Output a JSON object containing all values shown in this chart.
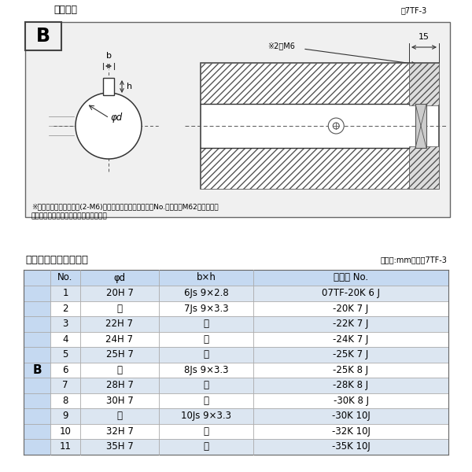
{
  "title_top": "軸穴形状",
  "fig_label_top": "図7TF-3",
  "table_title": "軸穴形状コード一覧表",
  "table_unit": "（単位:mm）　表7TF-3",
  "note1": "※セットボルト用タップ(2-M6)が必要な場合は右記コードNo.の末尾にM62を付ける。",
  "note2": "（セットボルトは付属されています。）",
  "dim_note": "※2－M6",
  "dim_15": "15",
  "label_b": "b",
  "label_h": "h",
  "label_phid": "φd",
  "label_B_draw": "B",
  "header_bg": "#c5d9f1",
  "row_bg_odd": "#dce6f1",
  "row_bg_even": "#ffffff",
  "b_col_bg": "#c5d9f1",
  "col_headers": [
    "No.",
    "φd",
    "b×h",
    "コード No."
  ],
  "ditto": "〃",
  "rows": [
    [
      "1",
      "20H 7",
      "6Js 9×2.8",
      "07TF-20K 6 J"
    ],
    [
      "2",
      "〃",
      "7Js 9×3.3",
      "-20K 7 J"
    ],
    [
      "3",
      "22H 7",
      "〃",
      "-22K 7 J"
    ],
    [
      "4",
      "24H 7",
      "〃",
      "-24K 7 J"
    ],
    [
      "5",
      "25H 7",
      "〃",
      "-25K 7 J"
    ],
    [
      "6",
      "〃",
      "8Js 9×3.3",
      "-25K 8 J"
    ],
    [
      "7",
      "28H 7",
      "〃",
      "-28K 8 J"
    ],
    [
      "8",
      "30H 7",
      "〃",
      "-30K 8 J"
    ],
    [
      "9",
      "〃",
      "10Js 9×3.3",
      "-30K 10J"
    ],
    [
      "10",
      "32H 7",
      "〃",
      "-32K 10J"
    ],
    [
      "11",
      "35H 7",
      "〃",
      "-35K 10J"
    ]
  ]
}
